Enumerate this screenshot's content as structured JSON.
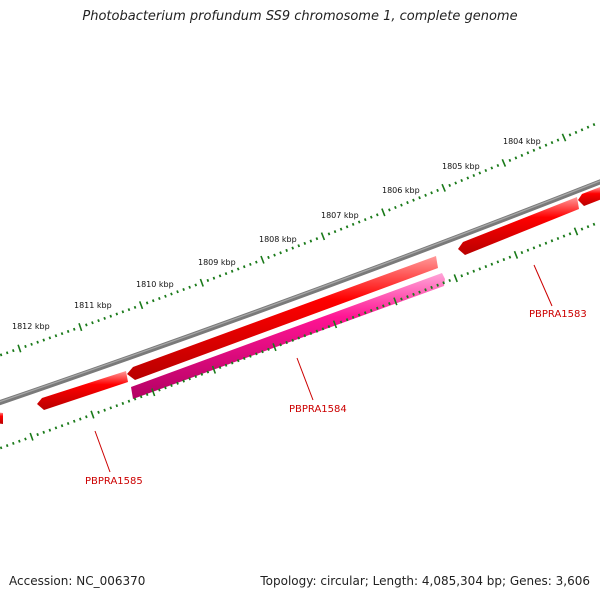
{
  "title": "Photobacterium profundum SS9 chromosome 1, complete genome",
  "footer": {
    "accession": "Accession: NC_006370",
    "summary": "Topology: circular; Length: 4,085,304 bp; Genes: 3,606"
  },
  "scale_ticks": [
    {
      "label": "1804 kbp"
    },
    {
      "label": "1805 kbp"
    },
    {
      "label": "1806 kbp"
    },
    {
      "label": "1807 kbp"
    },
    {
      "label": "1808 kbp"
    },
    {
      "label": "1809 kbp"
    },
    {
      "label": "1810 kbp"
    },
    {
      "label": "1811 kbp"
    },
    {
      "label": "1812 kbp"
    }
  ],
  "genes": [
    {
      "label": "PBPRA1583",
      "strand": "forward",
      "color": "#ff0000"
    },
    {
      "label": "PBPRA1584",
      "strand": "reverse",
      "color": "#ff1493"
    },
    {
      "label": "PBPRA1585",
      "strand": "forward",
      "color": "#ff0000"
    }
  ],
  "colors": {
    "backbone": "#7f7f7f",
    "tick": "#1a7a1a",
    "forward_gene": "#ff0000",
    "reverse_gene": "#ff1493",
    "label": "#cc0000"
  }
}
